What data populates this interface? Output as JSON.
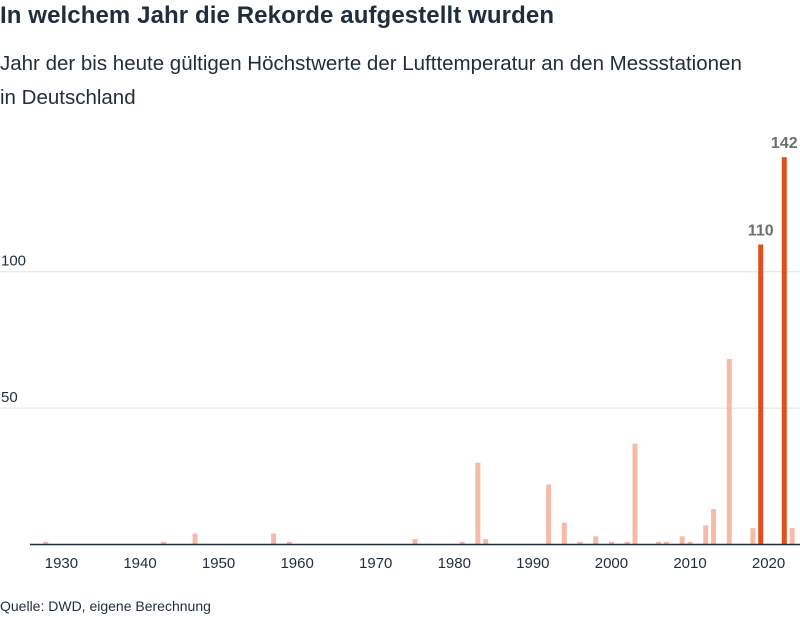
{
  "title": "In welchem Jahr die Rekorde aufgestellt wurden",
  "subtitle": "Jahr der bis heute gültigen Höchstwerte der Lufttemperatur an den Messstationen in Deutschland",
  "source": "Quelle: DWD, eigene Berechnung",
  "colors": {
    "highlight": "#e0501f",
    "base": "#f5bba8",
    "grid": "#e2e2e2",
    "axis": "#1f2d3d",
    "label": "#6e6e6e"
  },
  "chart_data": {
    "type": "bar",
    "xlim": [
      1926,
      2024
    ],
    "ylim": [
      0,
      145
    ],
    "yticks": [
      50,
      100
    ],
    "xticks": [
      1930,
      1940,
      1950,
      1960,
      1970,
      1980,
      1990,
      2000,
      2010,
      2020
    ],
    "grid": true,
    "series": [
      {
        "x": [
          1928,
          1943,
          1947,
          1957,
          1959,
          1975,
          1981,
          1983,
          1984,
          1992,
          1994,
          1996,
          1998,
          2000,
          2002,
          2003,
          2006,
          2007,
          2009,
          2010,
          2012,
          2013,
          2015,
          2018,
          2019,
          2022,
          2023
        ],
        "values": [
          1,
          1,
          4,
          4,
          1,
          2,
          1,
          30,
          2,
          22,
          8,
          1,
          3,
          1,
          1,
          37,
          1,
          1,
          3,
          1,
          7,
          13,
          68,
          6,
          110,
          142,
          6
        ],
        "highlight": [
          false,
          false,
          false,
          false,
          false,
          false,
          false,
          false,
          false,
          false,
          false,
          false,
          false,
          false,
          false,
          false,
          false,
          false,
          false,
          false,
          false,
          false,
          false,
          false,
          true,
          true,
          false
        ]
      }
    ],
    "data_labels": [
      {
        "x": 2019,
        "text": "110"
      },
      {
        "x": 2022,
        "text": "142"
      }
    ]
  }
}
